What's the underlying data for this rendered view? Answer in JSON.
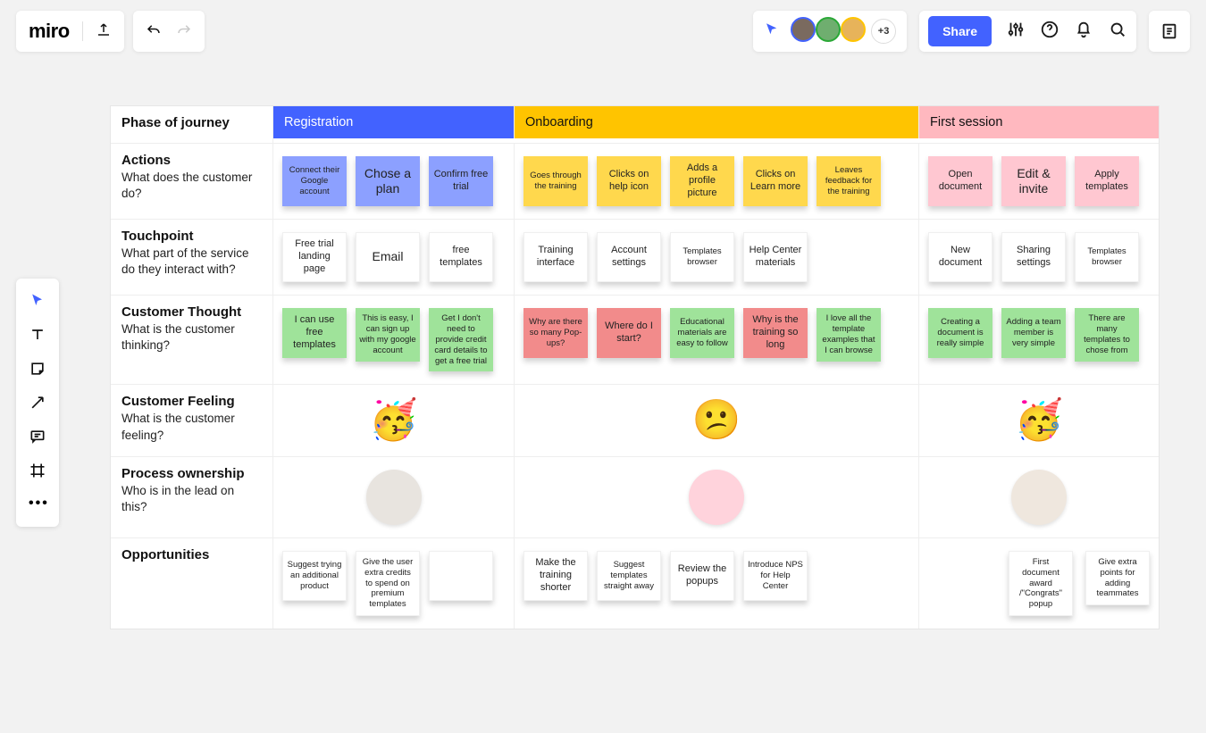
{
  "app": {
    "logo": "miro"
  },
  "topbar": {
    "share_label": "Share",
    "avatar_more": "+3",
    "avatars": [
      {
        "bg": "#7a6a5f",
        "ring": "#4262ff"
      },
      {
        "bg": "#6fae6f",
        "ring": "#2aa836"
      },
      {
        "bg": "#e7b35a",
        "ring": "#ffc400"
      }
    ]
  },
  "note_colors": {
    "blue": "#8ca0ff",
    "yellow": "#ffd84d",
    "pink": "#ffc7d1",
    "white": "#ffffff",
    "green": "#9fe39a",
    "red": "#f28b8b"
  },
  "journey": {
    "header_label": "Phase of journey",
    "phases": [
      {
        "key": "reg",
        "label": "Registration"
      },
      {
        "key": "onb",
        "label": "Onboarding"
      },
      {
        "key": "first",
        "label": "First session"
      }
    ],
    "rows": [
      {
        "key": "actions",
        "title": "Actions",
        "subtitle": "What does the customer do?",
        "cells": {
          "reg": [
            {
              "text": "Connect their Google account",
              "color": "blue",
              "size": "s"
            },
            {
              "text": "Chose a plan",
              "color": "blue",
              "size": "big"
            },
            {
              "text": "Confirm free trial",
              "color": "blue",
              "size": "med"
            }
          ],
          "onb": [
            {
              "text": "Goes through the training",
              "color": "yellow",
              "size": "s"
            },
            {
              "text": "Clicks on help icon",
              "color": "yellow",
              "size": "med"
            },
            {
              "text": "Adds a profile picture",
              "color": "yellow",
              "size": "med"
            },
            {
              "text": "Clicks on Learn more",
              "color": "yellow",
              "size": "med"
            },
            {
              "text": "Leaves feedback for the training",
              "color": "yellow",
              "size": "s"
            }
          ],
          "first": [
            {
              "text": "Open document",
              "color": "pink",
              "size": "med"
            },
            {
              "text": "Edit & invite",
              "color": "pink",
              "size": "big"
            },
            {
              "text": "Apply templates",
              "color": "pink",
              "size": "med"
            }
          ]
        }
      },
      {
        "key": "touchpoint",
        "title": "Touchpoint",
        "subtitle": "What part of the service do they interact with?",
        "cells": {
          "reg": [
            {
              "text": "Free trial landing page",
              "color": "white",
              "size": "med"
            },
            {
              "text": "Email",
              "color": "white",
              "size": "big"
            },
            {
              "text": "free templates",
              "color": "white",
              "size": "med"
            }
          ],
          "onb": [
            {
              "text": "Training interface",
              "color": "white",
              "size": "med"
            },
            {
              "text": "Account settings",
              "color": "white",
              "size": "med"
            },
            {
              "text": "Templates browser",
              "color": "white",
              "size": "s"
            },
            {
              "text": "Help Center materials",
              "color": "white",
              "size": "med"
            }
          ],
          "first": [
            {
              "text": "New document",
              "color": "white",
              "size": "med"
            },
            {
              "text": "Sharing settings",
              "color": "white",
              "size": "med"
            },
            {
              "text": "Templates browser",
              "color": "white",
              "size": "s"
            }
          ]
        }
      },
      {
        "key": "thought",
        "title": "Customer Thought",
        "subtitle": "What is the customer thinking?",
        "cells": {
          "reg": [
            {
              "text": "I can use free templates",
              "color": "green",
              "size": "med"
            },
            {
              "text": "This is easy, I can sign up with my google account",
              "color": "green",
              "size": "s"
            },
            {
              "text": "Get I don't need to provide credit card details to get a free trial",
              "color": "green",
              "size": "s"
            }
          ],
          "onb": [
            {
              "text": "Why are there so many Pop-ups?",
              "color": "red",
              "size": "s"
            },
            {
              "text": "Where do I start?",
              "color": "red",
              "size": "med"
            },
            {
              "text": "Educational materials are easy to follow",
              "color": "green",
              "size": "s"
            },
            {
              "text": "Why is the training so long",
              "color": "red",
              "size": "med"
            },
            {
              "text": "I love all the template examples that I can browse",
              "color": "green",
              "size": "s"
            }
          ],
          "first": [
            {
              "text": "Creating a document is really simple",
              "color": "green",
              "size": "s"
            },
            {
              "text": "Adding a team member is very simple",
              "color": "green",
              "size": "s"
            },
            {
              "text": "There are many templates to chose from",
              "color": "green",
              "size": "s"
            }
          ]
        }
      },
      {
        "key": "feeling",
        "title": "Customer Feeling",
        "subtitle": "What is the customer feeling?",
        "feel": {
          "reg": "🥳",
          "onb": "😕",
          "first": "🥳"
        }
      },
      {
        "key": "owner",
        "title": "Process ownership",
        "subtitle": "Who is in the lead on this?",
        "owner": {
          "reg": {
            "bg": "#e8e4df"
          },
          "onb": {
            "bg": "#ffd3dc"
          },
          "first": {
            "bg": "#efe7de"
          }
        }
      },
      {
        "key": "opps",
        "title": "Opportunities",
        "subtitle": "",
        "cells": {
          "reg": [
            {
              "text": "Suggest trying an additional product",
              "color": "white",
              "size": "s"
            },
            {
              "text": "Give the user extra credits to spend on premium templates",
              "color": "white",
              "size": "s"
            },
            {
              "text": "",
              "color": "white",
              "size": "s"
            }
          ],
          "onb": [
            {
              "text": "Make the training shorter",
              "color": "white",
              "size": "med"
            },
            {
              "text": "Suggest templates straight away",
              "color": "white",
              "size": "s"
            },
            {
              "text": "Review the popups",
              "color": "white",
              "size": "med"
            },
            {
              "text": "Introduce NPS for Help Center",
              "color": "white",
              "size": "s"
            }
          ],
          "first": [
            {
              "text": "First document award /\"Congrats\" popup",
              "color": "white",
              "size": "s"
            },
            {
              "text": "Give extra points for adding teammates",
              "color": "white",
              "size": "s"
            }
          ]
        }
      }
    ]
  }
}
